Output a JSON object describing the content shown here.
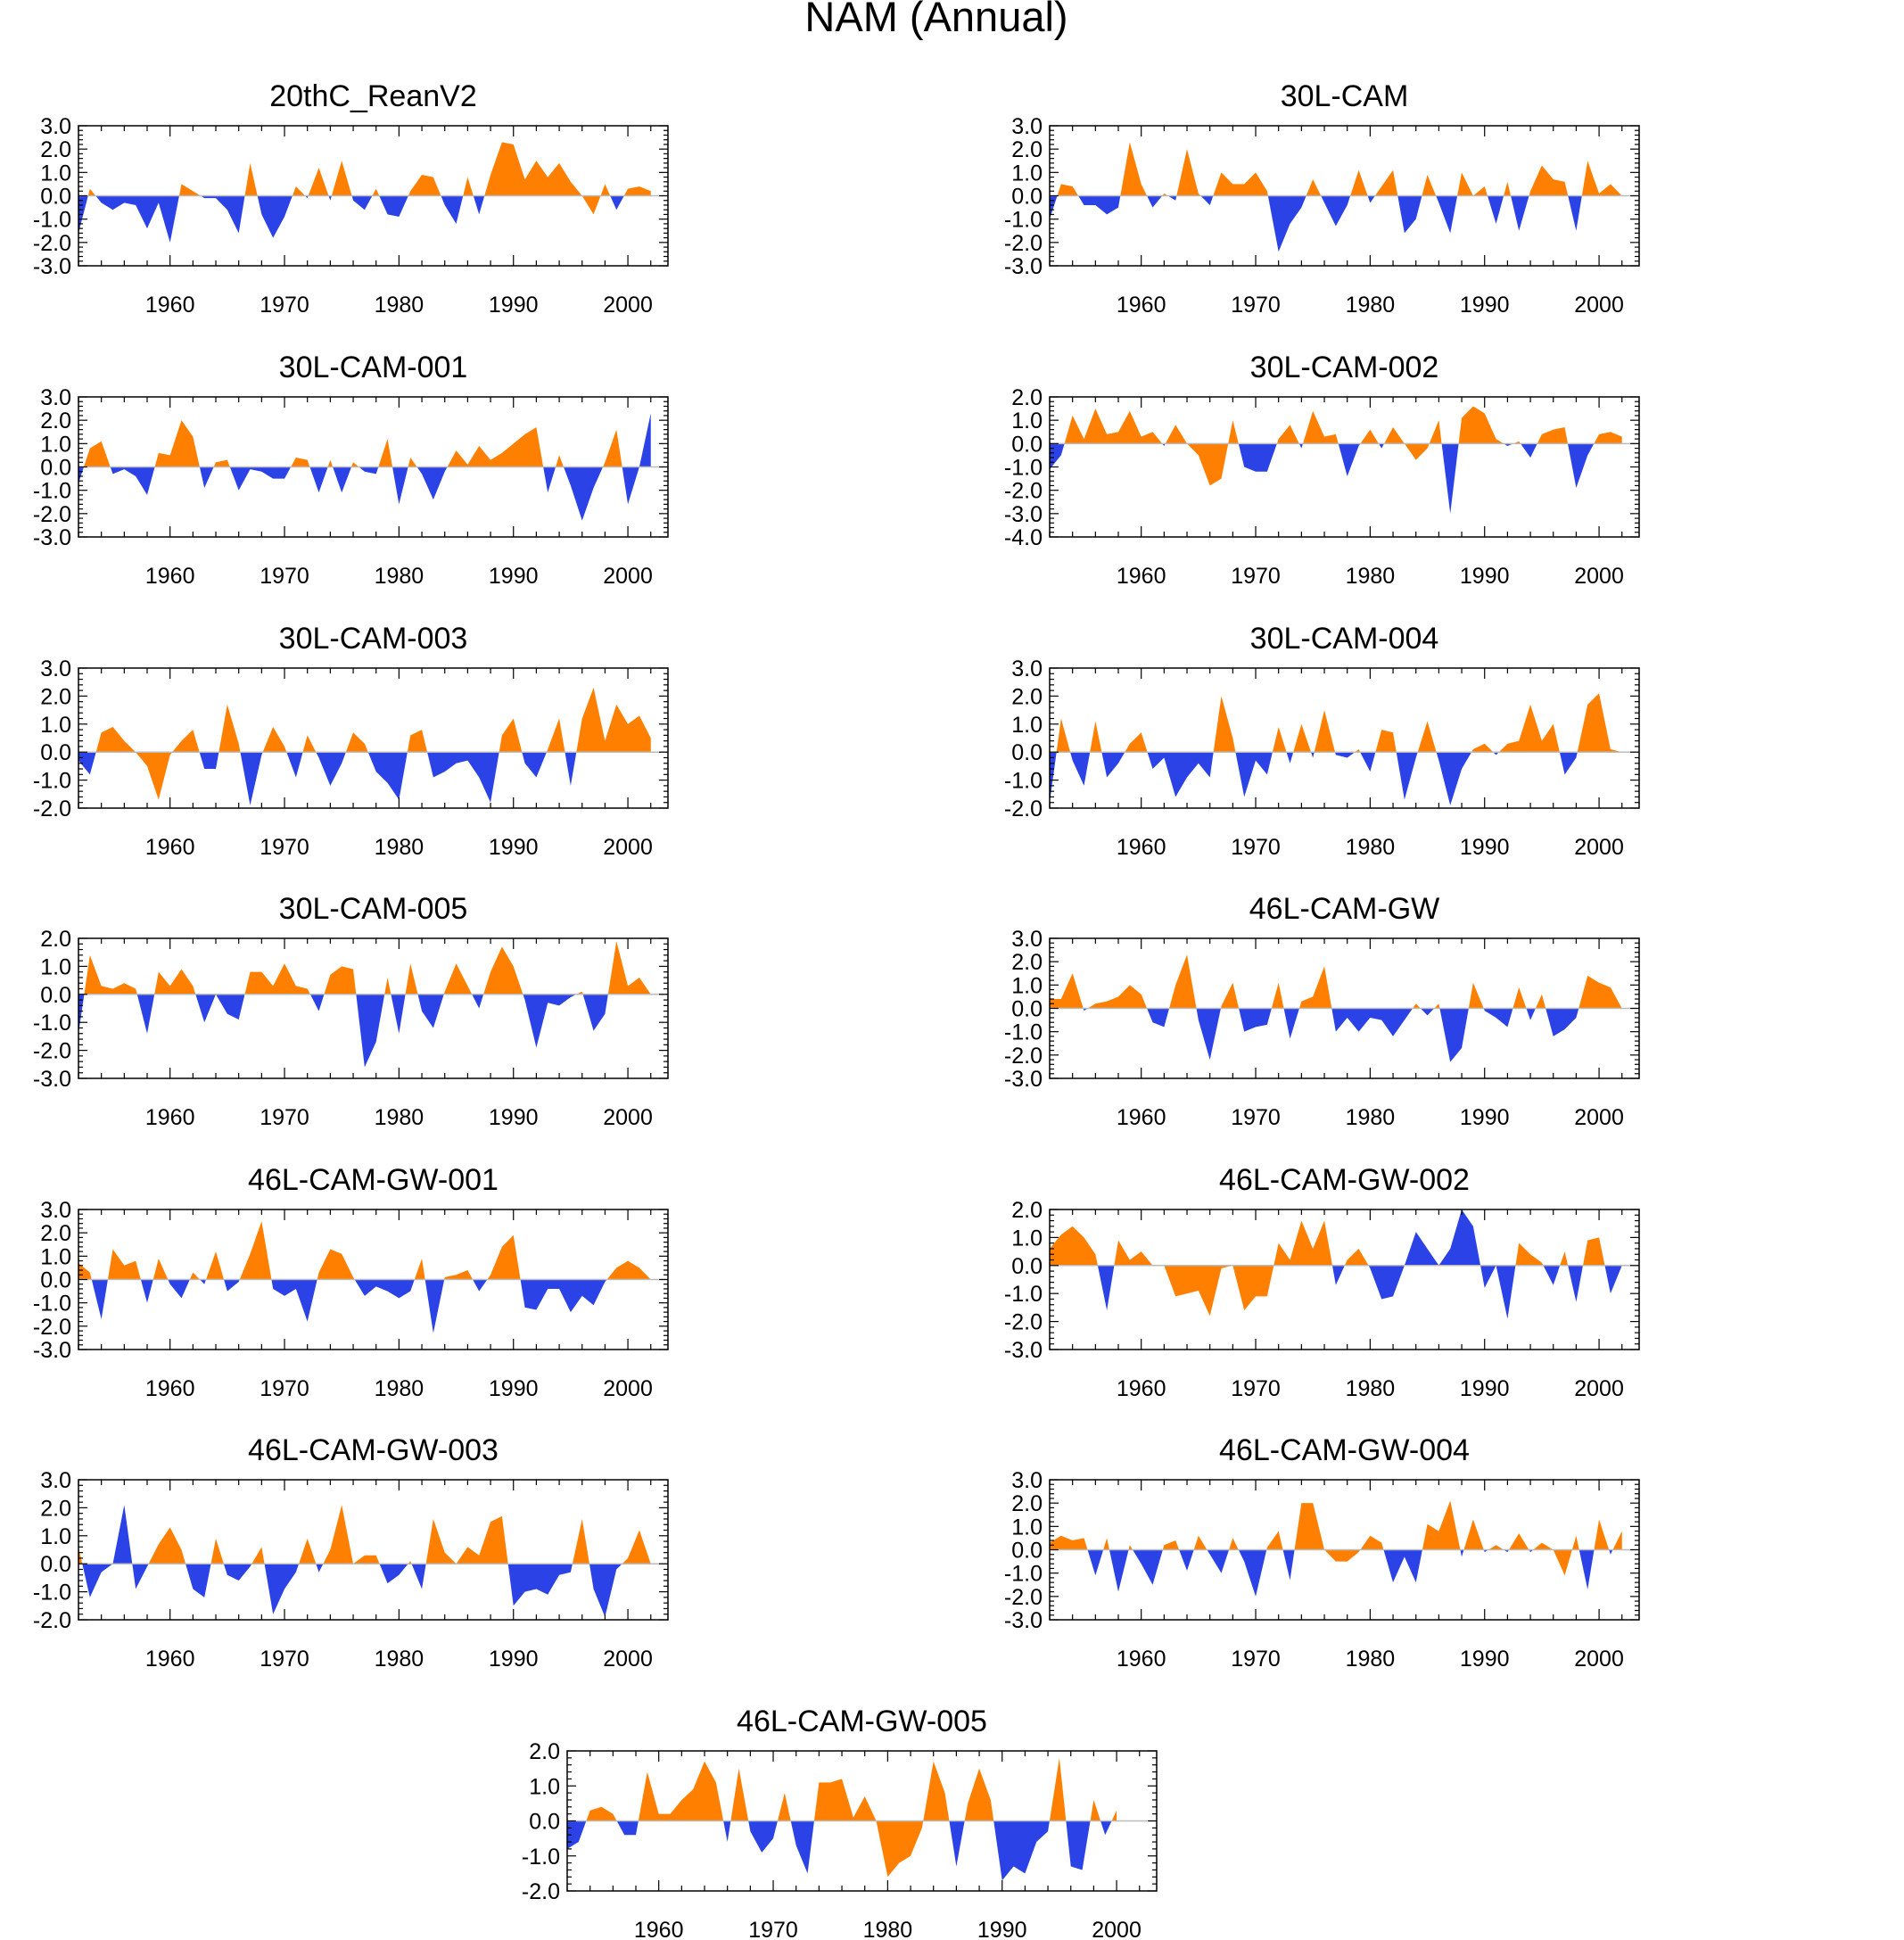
{
  "figure": {
    "title": "NAM (Annual)"
  },
  "colors": {
    "positive": "#ff8000",
    "negative": "#2b43e6",
    "axis": "#000000",
    "zero": "#bbbbbb"
  },
  "chart_data": [
    {
      "type": "area",
      "title": "20thC_ReanV2",
      "x_start": 1952,
      "x_tick_labels": [
        "1960",
        "1970",
        "1980",
        "1990",
        "2000"
      ],
      "ylim": [
        -3,
        3
      ],
      "y_tick_labels": [
        "3.0",
        "2.0",
        "1.0",
        "0.0",
        "-1.0",
        "-2.0",
        "-3.0"
      ],
      "values": [
        -1.6,
        0.3,
        -0.3,
        -0.6,
        -0.3,
        -0.4,
        -1.4,
        -0.3,
        -2.0,
        0.5,
        0.2,
        -0.1,
        -0.1,
        -0.6,
        -1.6,
        1.4,
        -0.8,
        -1.8,
        -0.9,
        0.4,
        -0.1,
        1.2,
        -0.2,
        1.5,
        -0.2,
        -0.6,
        0.3,
        -0.8,
        -0.9,
        0.2,
        0.9,
        0.8,
        -0.4,
        -1.2,
        0.8,
        -0.8,
        0.9,
        2.3,
        2.2,
        0.7,
        1.5,
        0.8,
        1.4,
        0.6,
        0.0,
        -0.8,
        0.5,
        -0.6,
        0.3,
        0.4,
        0.2
      ]
    },
    {
      "type": "area",
      "title": "30L-CAM",
      "x_start": 1952,
      "x_tick_labels": [
        "1960",
        "1970",
        "1980",
        "1990",
        "2000"
      ],
      "ylim": [
        -3,
        3
      ],
      "y_tick_labels": [
        "3.0",
        "2.0",
        "1.0",
        "0.0",
        "-1.0",
        "-2.0",
        "-3.0"
      ],
      "values": [
        -1.0,
        0.5,
        0.4,
        -0.4,
        -0.4,
        -0.8,
        -0.5,
        2.3,
        0.5,
        -0.5,
        0.1,
        -0.2,
        2.0,
        0.1,
        -0.4,
        1.0,
        0.5,
        0.5,
        1.0,
        0.2,
        -2.4,
        -1.2,
        -0.5,
        0.7,
        -0.3,
        -1.3,
        -0.4,
        1.1,
        -0.3,
        0.4,
        1.1,
        -1.6,
        -1.0,
        0.9,
        -0.3,
        -1.6,
        1.0,
        0.0,
        0.4,
        -1.2,
        0.6,
        -1.5,
        0.2,
        1.3,
        0.7,
        0.6,
        -1.5,
        1.5,
        0.1,
        0.5,
        0.0
      ]
    },
    {
      "type": "area",
      "title": "30L-CAM-001",
      "x_start": 1952,
      "x_tick_labels": [
        "1960",
        "1970",
        "1980",
        "1990",
        "2000"
      ],
      "ylim": [
        -3,
        3
      ],
      "y_tick_labels": [
        "3.0",
        "2.0",
        "1.0",
        "0.0",
        "-1.0",
        "-2.0",
        "-3.0"
      ],
      "values": [
        -0.7,
        0.8,
        1.1,
        -0.3,
        -0.1,
        -0.4,
        -1.2,
        0.6,
        0.5,
        2.0,
        1.3,
        -0.9,
        0.2,
        0.3,
        -1.0,
        -0.1,
        -0.2,
        -0.5,
        -0.5,
        0.4,
        0.3,
        -1.1,
        0.3,
        -1.1,
        0.2,
        -0.2,
        -0.3,
        1.2,
        -1.6,
        0.4,
        -0.3,
        -1.4,
        -0.2,
        0.7,
        0.1,
        0.9,
        0.3,
        0.6,
        1.0,
        1.4,
        1.7,
        -1.1,
        0.5,
        -0.8,
        -2.3,
        -0.9,
        0.2,
        1.6,
        -1.6,
        0.0,
        2.3
      ]
    },
    {
      "type": "area",
      "title": "30L-CAM-002",
      "x_start": 1952,
      "x_tick_labels": [
        "1960",
        "1970",
        "1980",
        "1990",
        "2000"
      ],
      "ylim": [
        -4,
        2
      ],
      "y_tick_labels": [
        "2.0",
        "1.0",
        "0.0",
        "-1.0",
        "-2.0",
        "-3.0",
        "-4.0"
      ],
      "values": [
        -1.1,
        -0.5,
        1.2,
        0.2,
        1.5,
        0.4,
        0.5,
        1.4,
        0.3,
        0.5,
        -0.1,
        0.8,
        0.0,
        -0.5,
        -1.8,
        -1.5,
        1.0,
        -1.0,
        -1.2,
        -1.2,
        0.2,
        0.8,
        -0.2,
        1.4,
        0.3,
        0.4,
        -1.4,
        -0.1,
        0.6,
        -0.2,
        0.7,
        0.0,
        -0.7,
        -0.2,
        1.0,
        -3.0,
        1.1,
        1.6,
        1.3,
        0.2,
        -0.1,
        0.1,
        -0.6,
        0.4,
        0.6,
        0.7,
        -1.9,
        -0.5,
        0.4,
        0.5,
        0.3
      ]
    },
    {
      "type": "area",
      "title": "30L-CAM-003",
      "x_start": 1952,
      "x_tick_labels": [
        "1960",
        "1970",
        "1980",
        "1990",
        "2000"
      ],
      "ylim": [
        -2,
        3
      ],
      "y_tick_labels": [
        "3.0",
        "2.0",
        "1.0",
        "0.0",
        "-1.0",
        "-2.0"
      ],
      "values": [
        -0.3,
        -0.8,
        0.7,
        0.9,
        0.4,
        0.0,
        -0.5,
        -1.7,
        -0.1,
        0.4,
        0.8,
        -0.6,
        -0.6,
        1.7,
        0.3,
        -1.9,
        -0.1,
        0.9,
        0.2,
        -0.9,
        0.6,
        -0.2,
        -1.2,
        -0.4,
        0.7,
        0.3,
        -0.7,
        -1.1,
        -1.7,
        0.6,
        0.8,
        -0.9,
        -0.7,
        -0.4,
        -0.3,
        -0.9,
        -1.8,
        0.6,
        1.2,
        -0.4,
        -0.9,
        0.1,
        1.2,
        -1.2,
        1.2,
        2.3,
        0.4,
        1.7,
        1.0,
        1.3,
        0.5
      ]
    },
    {
      "type": "area",
      "title": "30L-CAM-004",
      "x_start": 1952,
      "x_tick_labels": [
        "1960",
        "1970",
        "1980",
        "1990",
        "2000"
      ],
      "ylim": [
        -2,
        3
      ],
      "y_tick_labels": [
        "3.0",
        "2.0",
        "1.0",
        "0.0",
        "-1.0",
        "-2.0"
      ],
      "values": [
        -1.8,
        1.2,
        -0.3,
        -1.2,
        1.1,
        -0.9,
        -0.4,
        0.3,
        0.7,
        -0.6,
        -0.2,
        -1.6,
        -0.9,
        -0.4,
        -0.9,
        2.0,
        0.5,
        -1.6,
        -0.3,
        -0.8,
        0.9,
        -0.4,
        1.0,
        -0.2,
        1.5,
        -0.1,
        -0.2,
        0.1,
        -0.7,
        0.8,
        0.7,
        -1.7,
        -0.2,
        1.1,
        -0.3,
        -1.9,
        -0.6,
        0.1,
        0.3,
        -0.1,
        0.3,
        0.4,
        1.7,
        0.4,
        1.0,
        -0.8,
        -0.2,
        1.7,
        2.1,
        0.1,
        0.0
      ]
    },
    {
      "type": "area",
      "title": "30L-CAM-005",
      "x_start": 1952,
      "x_tick_labels": [
        "1960",
        "1970",
        "1980",
        "1990",
        "2000"
      ],
      "ylim": [
        -3,
        2
      ],
      "y_tick_labels": [
        "2.0",
        "1.0",
        "0.0",
        "-1.0",
        "-2.0",
        "-3.0"
      ],
      "values": [
        -1.4,
        1.4,
        0.3,
        0.2,
        0.4,
        0.2,
        -1.4,
        0.8,
        0.3,
        0.9,
        0.3,
        -1.0,
        0.0,
        -0.7,
        -0.9,
        0.8,
        0.8,
        0.3,
        1.1,
        0.3,
        0.2,
        -0.6,
        0.7,
        1.0,
        0.9,
        -2.6,
        -1.7,
        0.6,
        -1.4,
        1.1,
        -0.6,
        -1.2,
        0.1,
        1.1,
        0.3,
        -0.5,
        0.8,
        1.7,
        1.0,
        -0.2,
        -1.9,
        -0.3,
        -0.4,
        -0.1,
        0.1,
        -1.3,
        -0.7,
        1.9,
        0.3,
        0.6,
        0.0
      ]
    },
    {
      "type": "area",
      "title": "46L-CAM-GW",
      "x_start": 1952,
      "x_tick_labels": [
        "1960",
        "1970",
        "1980",
        "1990",
        "2000"
      ],
      "ylim": [
        -3,
        3
      ],
      "y_tick_labels": [
        "3.0",
        "2.0",
        "1.0",
        "0.0",
        "-1.0",
        "-2.0",
        "-3.0"
      ],
      "values": [
        0.4,
        0.4,
        1.5,
        -0.1,
        0.2,
        0.3,
        0.5,
        1.0,
        0.6,
        -0.6,
        -0.8,
        1.0,
        2.3,
        -0.5,
        -2.2,
        0.1,
        1.1,
        -1.0,
        -0.8,
        -0.7,
        1.1,
        -1.3,
        0.3,
        0.5,
        1.8,
        -1.0,
        -0.4,
        -1.0,
        -0.4,
        -0.5,
        -1.2,
        -0.5,
        0.2,
        -0.3,
        0.2,
        -2.3,
        -1.7,
        1.1,
        -0.1,
        -0.4,
        -0.8,
        0.9,
        -0.5,
        0.6,
        -1.2,
        -0.9,
        -0.4,
        1.4,
        1.1,
        0.9,
        0.0
      ]
    },
    {
      "type": "area",
      "title": "46L-CAM-GW-001",
      "x_start": 1952,
      "x_tick_labels": [
        "1960",
        "1970",
        "1980",
        "1990",
        "2000"
      ],
      "ylim": [
        -3,
        3
      ],
      "y_tick_labels": [
        "3.0",
        "2.0",
        "1.0",
        "0.0",
        "-1.0",
        "-2.0",
        "-3.0"
      ],
      "values": [
        0.7,
        0.3,
        -1.7,
        1.3,
        0.6,
        0.8,
        -1.0,
        0.9,
        -0.2,
        -0.8,
        0.3,
        -0.2,
        1.2,
        -0.5,
        -0.1,
        1.1,
        2.5,
        -0.4,
        -0.7,
        -0.4,
        -1.8,
        0.3,
        1.3,
        1.1,
        0.1,
        -0.7,
        -0.3,
        -0.5,
        -0.8,
        -0.5,
        0.9,
        -2.3,
        0.1,
        0.2,
        0.4,
        -0.5,
        0.2,
        1.4,
        1.9,
        -1.2,
        -1.3,
        -0.4,
        -0.4,
        -1.4,
        -0.7,
        -1.1,
        -0.1,
        0.5,
        0.8,
        0.5,
        0.0
      ]
    },
    {
      "type": "area",
      "title": "46L-CAM-GW-002",
      "x_start": 1952,
      "x_tick_labels": [
        "1960",
        "1970",
        "1980",
        "1990",
        "2000"
      ],
      "ylim": [
        -3,
        2
      ],
      "y_tick_labels": [
        "2.0",
        "1.0",
        "0.0",
        "-1.0",
        "-2.0",
        "-3.0"
      ],
      "values": [
        0.6,
        1.1,
        1.4,
        1.0,
        0.4,
        -1.6,
        0.9,
        0.2,
        0.5,
        0.0,
        0.0,
        -1.1,
        -1.0,
        -0.9,
        -1.8,
        -0.1,
        0.0,
        -1.6,
        -1.1,
        -1.1,
        0.8,
        0.2,
        1.6,
        0.6,
        1.6,
        -0.7,
        0.2,
        0.6,
        -0.1,
        -1.2,
        -1.1,
        0.0,
        1.2,
        0.6,
        0.0,
        0.6,
        2.0,
        1.4,
        -0.8,
        0.0,
        -1.9,
        0.8,
        0.4,
        0.1,
        -0.7,
        0.5,
        -1.3,
        0.9,
        1.0,
        -1.0,
        0.0
      ]
    },
    {
      "type": "area",
      "title": "46L-CAM-GW-003",
      "x_start": 1952,
      "x_tick_labels": [
        "1960",
        "1970",
        "1980",
        "1990",
        "2000"
      ],
      "ylim": [
        -2,
        3
      ],
      "y_tick_labels": [
        "3.0",
        "2.0",
        "1.0",
        "0.0",
        "-1.0",
        "-2.0"
      ],
      "values": [
        0.6,
        -1.2,
        -0.3,
        0.0,
        2.1,
        -0.9,
        -0.1,
        0.7,
        1.3,
        0.5,
        -0.9,
        -1.2,
        0.9,
        -0.4,
        -0.6,
        -0.1,
        0.6,
        -1.8,
        -0.9,
        -0.3,
        0.9,
        -0.3,
        0.5,
        2.1,
        0.0,
        0.3,
        0.3,
        -0.7,
        -0.4,
        0.1,
        -0.9,
        1.6,
        0.4,
        0.0,
        0.6,
        0.3,
        1.5,
        1.7,
        -1.5,
        -1.0,
        -0.9,
        -1.1,
        -0.4,
        -0.3,
        1.6,
        -0.9,
        -1.9,
        -0.2,
        0.2,
        1.2,
        0.0
      ]
    },
    {
      "type": "area",
      "title": "46L-CAM-GW-004",
      "x_start": 1952,
      "x_tick_labels": [
        "1960",
        "1970",
        "1980",
        "1990",
        "2000"
      ],
      "ylim": [
        -3,
        3
      ],
      "y_tick_labels": [
        "3.0",
        "2.0",
        "1.0",
        "0.0",
        "-1.0",
        "-2.0",
        "-3.0"
      ],
      "values": [
        0.3,
        0.6,
        0.4,
        0.5,
        -1.1,
        0.5,
        -1.8,
        0.2,
        -0.6,
        -1.5,
        0.2,
        0.4,
        -0.9,
        0.6,
        -0.2,
        -1.0,
        0.5,
        -0.5,
        -2.0,
        0.1,
        0.8,
        -1.3,
        2.0,
        2.0,
        0.0,
        -0.5,
        -0.5,
        -0.1,
        0.6,
        0.3,
        -1.4,
        -0.3,
        -1.4,
        1.1,
        0.8,
        2.1,
        -0.3,
        1.3,
        -0.1,
        0.2,
        -0.1,
        0.7,
        -0.1,
        0.3,
        0.0,
        -1.1,
        0.6,
        -1.7,
        1.3,
        -0.2,
        0.8
      ]
    },
    {
      "type": "area",
      "title": "46L-CAM-GW-005",
      "x_start": 1952,
      "x_tick_labels": [
        "1960",
        "1970",
        "1980",
        "1990",
        "2000"
      ],
      "ylim": [
        -2,
        2
      ],
      "y_tick_labels": [
        "2.0",
        "1.0",
        "0.0",
        "-1.0",
        "-2.0"
      ],
      "values": [
        -0.8,
        -0.6,
        0.3,
        0.4,
        0.2,
        -0.4,
        -0.4,
        1.4,
        0.2,
        0.2,
        0.6,
        0.9,
        1.7,
        1.1,
        -0.6,
        1.5,
        -0.3,
        -0.9,
        -0.5,
        0.8,
        -0.7,
        -1.5,
        1.1,
        1.1,
        1.2,
        0.1,
        0.7,
        0.0,
        -1.6,
        -1.2,
        -1.0,
        -0.2,
        1.7,
        0.8,
        -1.3,
        0.5,
        1.5,
        0.6,
        -1.7,
        -1.3,
        -1.5,
        -0.6,
        -0.3,
        1.8,
        -1.3,
        -1.4,
        0.6,
        -0.4,
        0.3
      ]
    }
  ]
}
